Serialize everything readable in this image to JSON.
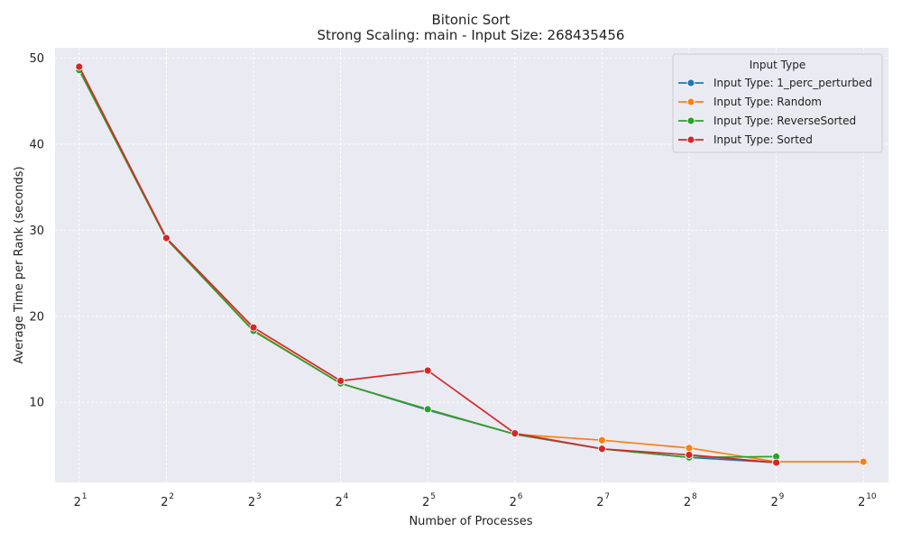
{
  "chart_data": {
    "type": "line",
    "title": "Bitonic Sort",
    "subtitle": "Strong Scaling: main - Input Size: 268435456",
    "xlabel": "Number of Processes",
    "ylabel": "Average Time per Rank (seconds)",
    "x_scale": "log2",
    "x_ticks": [
      2,
      4,
      8,
      16,
      32,
      64,
      128,
      256,
      512,
      1024
    ],
    "x_tick_base": "2",
    "x_tick_exponents": [
      "1",
      "2",
      "3",
      "4",
      "5",
      "6",
      "7",
      "8",
      "9",
      "10"
    ],
    "y_ticks": [
      10,
      20,
      30,
      40,
      50
    ],
    "y_tick_labels": [
      "10",
      "20",
      "30",
      "40",
      "50"
    ],
    "xlim": [
      1.65,
      1250
    ],
    "ylim": [
      0.7,
      51.2
    ],
    "grid": true,
    "legend": {
      "title": "Input Type",
      "position": "top-right"
    },
    "series": [
      {
        "name": "Input Type: 1_perc_perturbed",
        "color": "#1f77b4",
        "x": [
          2,
          4,
          8,
          16,
          32,
          64,
          128,
          256,
          512
        ],
        "y": [
          48.7,
          29.0,
          18.3,
          12.2,
          9.1,
          6.3,
          4.6,
          3.6,
          3.0
        ]
      },
      {
        "name": "Input Type: Random",
        "color": "#ff7f0e",
        "x": [
          2,
          4,
          8,
          16,
          32,
          64,
          128,
          256,
          512,
          1024
        ],
        "y": [
          48.7,
          29.0,
          18.4,
          12.2,
          9.2,
          6.3,
          5.6,
          4.7,
          3.1,
          3.1
        ]
      },
      {
        "name": "Input Type: ReverseSorted",
        "color": "#2ca02c",
        "x": [
          2,
          4,
          8,
          16,
          32,
          64,
          128,
          256,
          512
        ],
        "y": [
          48.6,
          29.0,
          18.3,
          12.2,
          9.2,
          6.3,
          4.6,
          3.6,
          3.7
        ]
      },
      {
        "name": "Input Type: Sorted",
        "color": "#d62728",
        "x": [
          2,
          4,
          8,
          16,
          32,
          64,
          128,
          256,
          512
        ],
        "y": [
          49.0,
          29.1,
          18.7,
          12.5,
          13.7,
          6.4,
          4.6,
          3.9,
          3.0
        ]
      }
    ]
  }
}
